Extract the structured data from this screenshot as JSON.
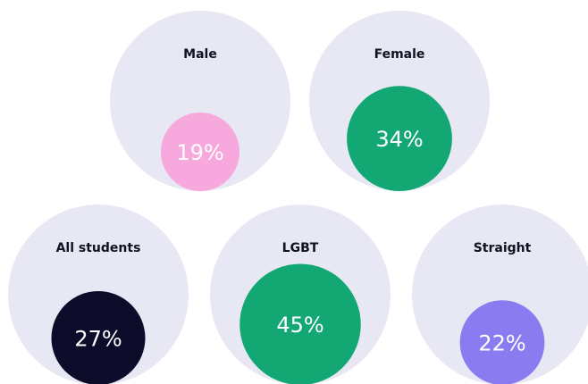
{
  "chart_data": {
    "type": "bubble",
    "categories": [
      "Male",
      "Female",
      "All students",
      "LGBT",
      "Straight"
    ],
    "values": [
      19,
      34,
      27,
      45,
      22
    ],
    "value_labels": [
      "19%",
      "34%",
      "27%",
      "45%",
      "22%"
    ],
    "colors": [
      "#f7a8dc",
      "#12a773",
      "#0c0c2a",
      "#12a773",
      "#8a7cf0"
    ],
    "background_color": "#e8e8f4",
    "size_lim": [
      0,
      100
    ]
  }
}
